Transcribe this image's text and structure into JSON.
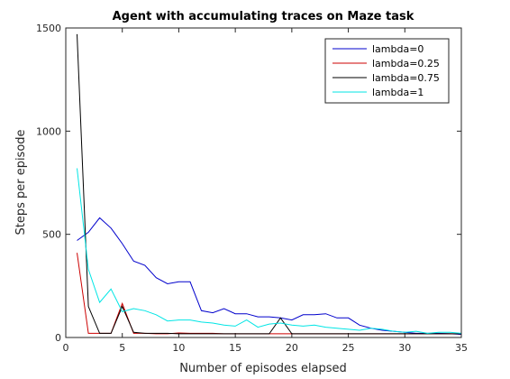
{
  "chart_data": {
    "type": "line",
    "title": "Agent with accumulating traces on Maze task",
    "xlabel": "Number of episodes elapsed",
    "ylabel": "Steps per episode",
    "xlim": [
      0,
      35
    ],
    "ylim": [
      0,
      1500
    ],
    "xticks": [
      0,
      5,
      10,
      15,
      20,
      25,
      30,
      35
    ],
    "yticks": [
      0,
      500,
      1000,
      1500
    ],
    "grid": false,
    "legend_position": "top-right",
    "x": [
      1,
      2,
      3,
      4,
      5,
      6,
      7,
      8,
      9,
      10,
      11,
      12,
      13,
      14,
      15,
      16,
      17,
      18,
      19,
      20,
      21,
      22,
      23,
      24,
      25,
      26,
      27,
      28,
      29,
      30,
      31,
      32,
      33,
      34,
      35
    ],
    "series": [
      {
        "name": "lambda=0",
        "color": "#0000cc",
        "values": [
          470,
          510,
          580,
          530,
          455,
          370,
          350,
          290,
          260,
          270,
          270,
          130,
          120,
          140,
          115,
          115,
          100,
          100,
          95,
          85,
          110,
          110,
          115,
          95,
          95,
          60,
          45,
          35,
          30,
          25,
          20,
          20,
          20,
          18,
          15
        ]
      },
      {
        "name": "lambda=0.25",
        "color": "#cc0000",
        "values": [
          410,
          20,
          20,
          20,
          165,
          20,
          20,
          18,
          18,
          22,
          20,
          20,
          20,
          18,
          18,
          18,
          18,
          18,
          18,
          18,
          18,
          18,
          18,
          18,
          18,
          18,
          18,
          18,
          18,
          18,
          18,
          18,
          18,
          18,
          18
        ]
      },
      {
        "name": "lambda=0.75",
        "color": "#000000",
        "values": [
          1470,
          150,
          20,
          20,
          150,
          25,
          20,
          20,
          20,
          18,
          18,
          18,
          18,
          18,
          18,
          18,
          18,
          18,
          95,
          18,
          18,
          18,
          18,
          18,
          18,
          18,
          18,
          18,
          18,
          18,
          18,
          18,
          18,
          18,
          18
        ]
      },
      {
        "name": "lambda=1",
        "color": "#00e5e5",
        "values": [
          820,
          330,
          170,
          235,
          125,
          140,
          130,
          110,
          80,
          85,
          85,
          75,
          70,
          60,
          55,
          85,
          50,
          65,
          70,
          60,
          55,
          60,
          50,
          45,
          40,
          35,
          45,
          40,
          30,
          25,
          30,
          20,
          25,
          25,
          20
        ]
      }
    ]
  }
}
